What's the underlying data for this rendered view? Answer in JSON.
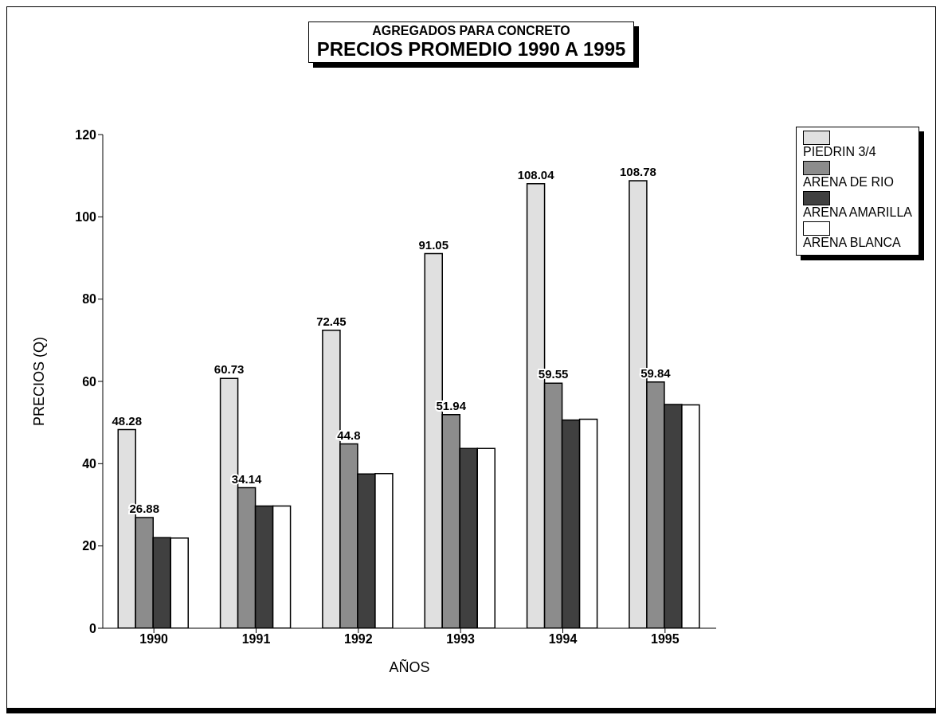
{
  "chart_data": {
    "type": "bar",
    "subtitle": "AGREGADOS PARA CONCRETO",
    "title": "PRECIOS PROMEDIO 1990 A 1995",
    "xlabel": "AÑOS",
    "ylabel": "PRECIOS (Q)",
    "categories": [
      "1990",
      "1991",
      "1992",
      "1993",
      "1994",
      "1995"
    ],
    "series": [
      {
        "name": "PIEDRIN 3/4",
        "color": "#e0e0e0",
        "values": [
          48.28,
          60.73,
          72.45,
          91.05,
          108.04,
          108.78
        ],
        "value_labels": [
          "48.28",
          "60.73",
          "72.45",
          "91.05",
          "108.04",
          "108.78"
        ]
      },
      {
        "name": "ARENA DE RIO",
        "color": "#8c8c8c",
        "values": [
          26.88,
          34.14,
          44.8,
          51.94,
          59.55,
          59.84
        ],
        "value_labels": [
          "26.88",
          "34.14",
          "44.8",
          "51.94",
          "59.55",
          "59.84"
        ]
      },
      {
        "name": "ARENA AMARILLA",
        "color": "#404040",
        "values": [
          22.0,
          29.7,
          37.5,
          43.7,
          50.6,
          54.4
        ]
      },
      {
        "name": "ARENA BLANCA",
        "color": "#ffffff",
        "values": [
          21.9,
          29.7,
          37.6,
          43.7,
          50.8,
          54.3
        ]
      }
    ],
    "ylim": [
      0,
      120
    ],
    "yticks": [
      0,
      20,
      40,
      60,
      80,
      100,
      120
    ],
    "grid": false,
    "legend": "top right"
  }
}
